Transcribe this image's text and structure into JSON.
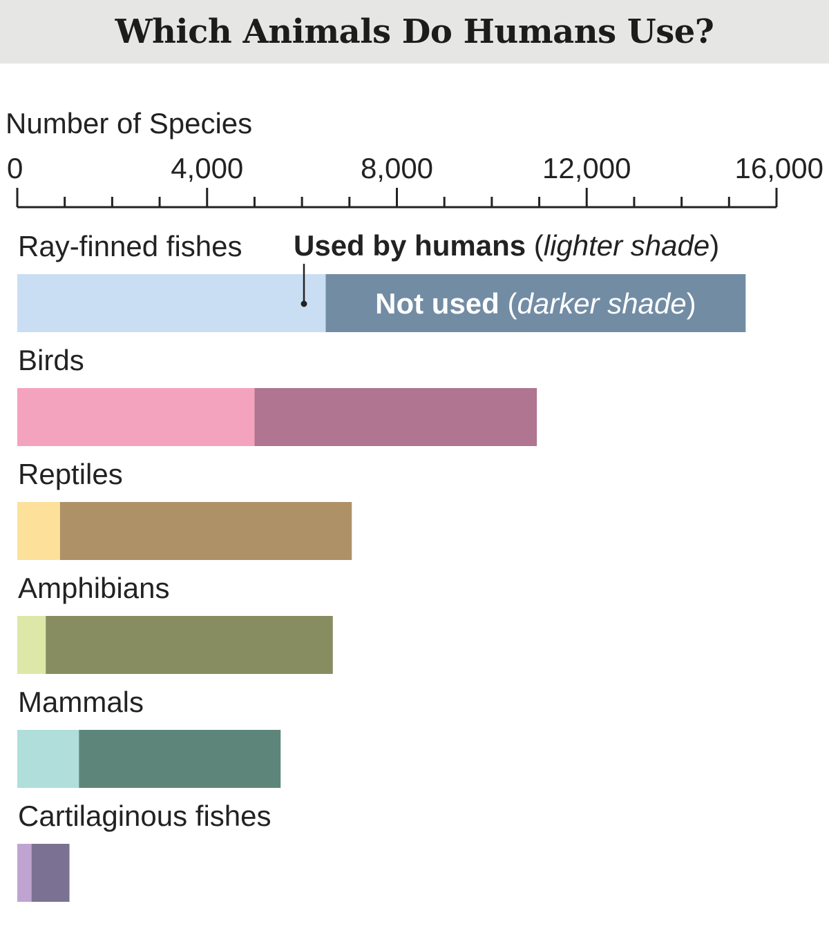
{
  "chart_data": {
    "type": "bar",
    "orientation": "horizontal",
    "stacked": true,
    "title": "Which Animals Do Humans Use?",
    "xlabel": "Number of Species",
    "xlim": [
      0,
      16000
    ],
    "ticks": [
      0,
      4000,
      8000,
      12000,
      16000
    ],
    "tick_labels": [
      "0",
      "4,000",
      "8,000",
      "12,000",
      "16,000"
    ],
    "minor_tick_step": 1000,
    "grid": false,
    "categories": [
      "Ray-finned fishes",
      "Birds",
      "Reptiles",
      "Amphibians",
      "Mammals",
      "Cartilaginous fishes"
    ],
    "series": [
      {
        "name": "Used by humans (lighter shade)",
        "values": [
          6500,
          5000,
          900,
          600,
          1300,
          300
        ]
      },
      {
        "name": "Not used (darker shade)",
        "values": [
          8850,
          5950,
          6150,
          6050,
          4250,
          800
        ]
      }
    ],
    "colors": {
      "used": [
        "#c9def3",
        "#f4a3bf",
        "#fde19b",
        "#dde8a8",
        "#b0dedb",
        "#bfa4d2"
      ],
      "not_used": [
        "#728ca4",
        "#af7591",
        "#ae9166",
        "#878d61",
        "#5e857a",
        "#7b7293"
      ]
    },
    "annotations": {
      "used": {
        "bold": "Used by humans",
        "open": " (",
        "italic": "lighter shade",
        "close": ")"
      },
      "not_used": {
        "bold": "Not used",
        "open": " (",
        "italic": "darker shade",
        "close": ")"
      }
    }
  }
}
